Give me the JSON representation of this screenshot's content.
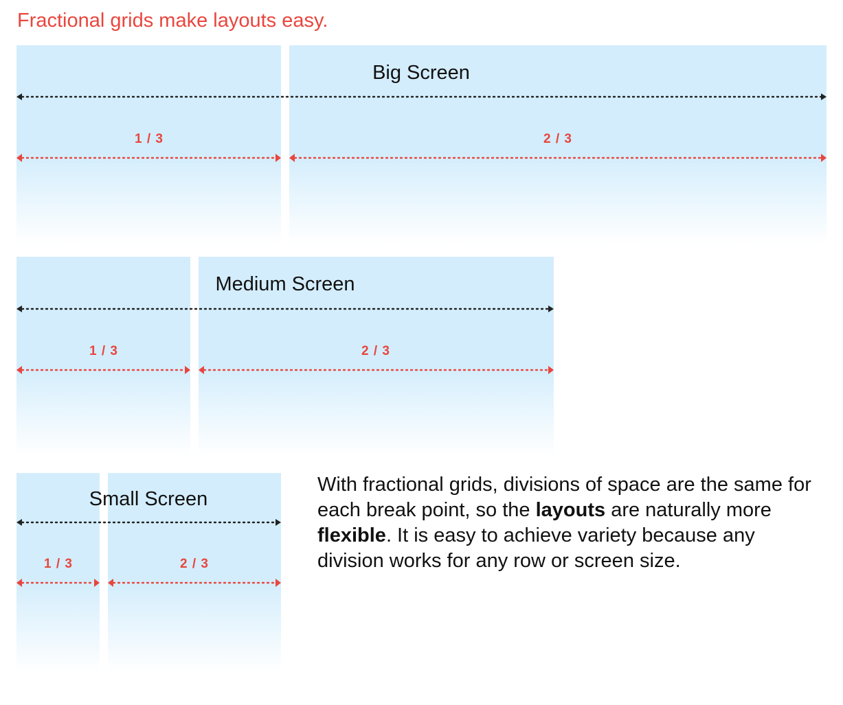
{
  "heading": "Fractional grids make layouts easy.",
  "colors": {
    "accent": "#e8463e",
    "column": "#d3edfc",
    "text": "#111111"
  },
  "screens": {
    "big": {
      "label": "Big Screen",
      "fractions": [
        "1 / 3",
        "2 / 3"
      ]
    },
    "medium": {
      "label": "Medium Screen",
      "fractions": [
        "1 / 3",
        "2 / 3"
      ]
    },
    "small": {
      "label": "Small Screen",
      "fractions": [
        "1 / 3",
        "2 / 3"
      ]
    }
  },
  "description": {
    "part1": "With fractional grids, divisions of space are the same for each break point, so the ",
    "bold1": "layouts",
    "part2": " are naturally more ",
    "bold2": "flexible",
    "part3": ". It is easy to achieve variety because any division works for any row or screen size."
  }
}
